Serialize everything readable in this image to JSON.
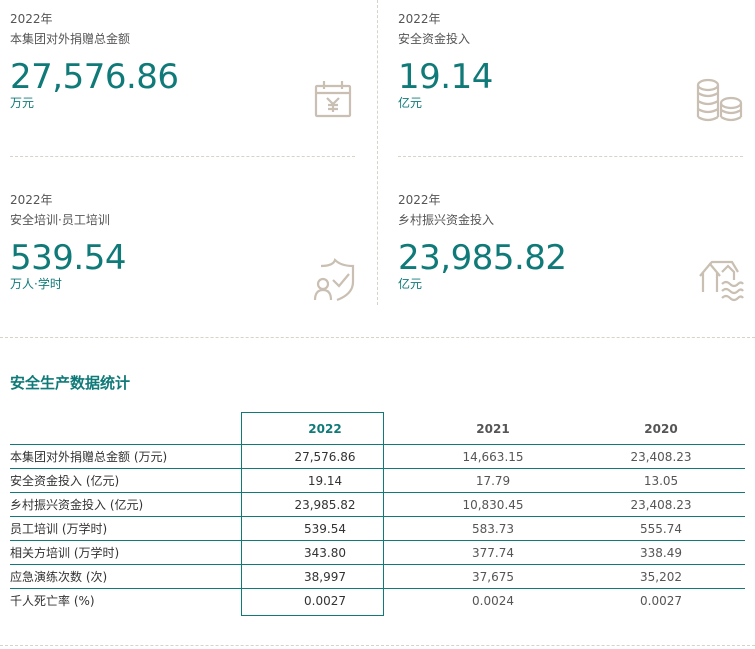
{
  "kpis": [
    {
      "year": "2022年",
      "label": "本集团对外捐赠总金额",
      "value": "27,576.86",
      "unit": "万元",
      "icon": "calendar-yen-icon"
    },
    {
      "year": "2022年",
      "label": "安全资金投入",
      "value": "19.14",
      "unit": "亿元",
      "icon": "coin-stack-icon"
    },
    {
      "year": "2022年",
      "label": "安全培训·员工培训",
      "value": "539.54",
      "unit": "万人·学时",
      "icon": "shield-person-icon"
    },
    {
      "year": "2022年",
      "label": "乡村振兴资金投入",
      "value": "23,985.82",
      "unit": "亿元",
      "icon": "village-house-icon"
    }
  ],
  "colors": {
    "accent": "#0f7a78",
    "icon": "#c9bfb2",
    "divider": "#d8d2c8"
  },
  "section": {
    "title": "安全生产数据统计"
  },
  "table": {
    "headers": [
      "",
      "2022",
      "2021",
      "2020"
    ],
    "rows": [
      [
        "本集团对外捐赠总金额 (万元)",
        "27,576.86",
        "14,663.15",
        "23,408.23"
      ],
      [
        "安全资金投入 (亿元)",
        "19.14",
        "17.79",
        "13.05"
      ],
      [
        "乡村振兴资金投入 (亿元)",
        "23,985.82",
        "10,830.45",
        "23,408.23"
      ],
      [
        "员工培训 (万学时)",
        "539.54",
        "583.73",
        "555.74"
      ],
      [
        "相关方培训 (万学时)",
        "343.80",
        "377.74",
        "338.49"
      ],
      [
        "应急演练次数 (次)",
        "38,997",
        "37,675",
        "35,202"
      ],
      [
        "千人死亡率 (%)",
        "0.0027",
        "0.0024",
        "0.0027"
      ]
    ]
  }
}
